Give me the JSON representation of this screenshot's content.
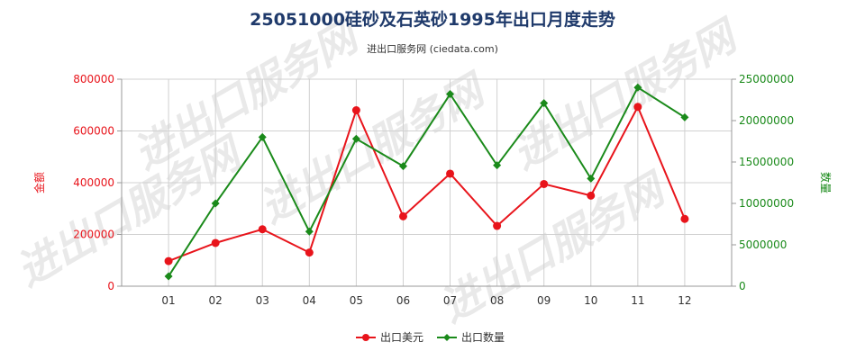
{
  "chart_data": {
    "type": "line",
    "title": "25051000硅砂及石英砂1995年出口月度走势",
    "subtitle": "进出口服务网 (ciedata.com)",
    "categories": [
      "01",
      "02",
      "03",
      "04",
      "05",
      "06",
      "07",
      "08",
      "09",
      "10",
      "11",
      "12"
    ],
    "left_axis": {
      "label": "金额",
      "range": [
        0,
        800000
      ],
      "ticks": [
        "0",
        "200000",
        "400000",
        "600000",
        "800000"
      ],
      "color": "#e8141b"
    },
    "right_axis": {
      "label": "数量",
      "range": [
        0,
        25000000
      ],
      "ticks": [
        "0",
        "5000000",
        "10000000",
        "15000000",
        "20000000",
        "25000000"
      ],
      "color": "#1a8a1a"
    },
    "series": [
      {
        "name": "出口美元",
        "axis": "left",
        "color": "#e8141b",
        "marker": "circle",
        "values": [
          97000,
          167000,
          220000,
          130000,
          680000,
          270000,
          435000,
          233000,
          395000,
          350000,
          693000,
          260000
        ]
      },
      {
        "name": "出口数量",
        "axis": "right",
        "color": "#1a8a1a",
        "marker": "diamond",
        "values": [
          1200000,
          10000000,
          18000000,
          6600000,
          17800000,
          14500000,
          23200000,
          14600000,
          22100000,
          13000000,
          24000000,
          20400000
        ]
      }
    ],
    "grid": true,
    "legend_position": "bottom-center",
    "watermark": "进出口服务网"
  }
}
